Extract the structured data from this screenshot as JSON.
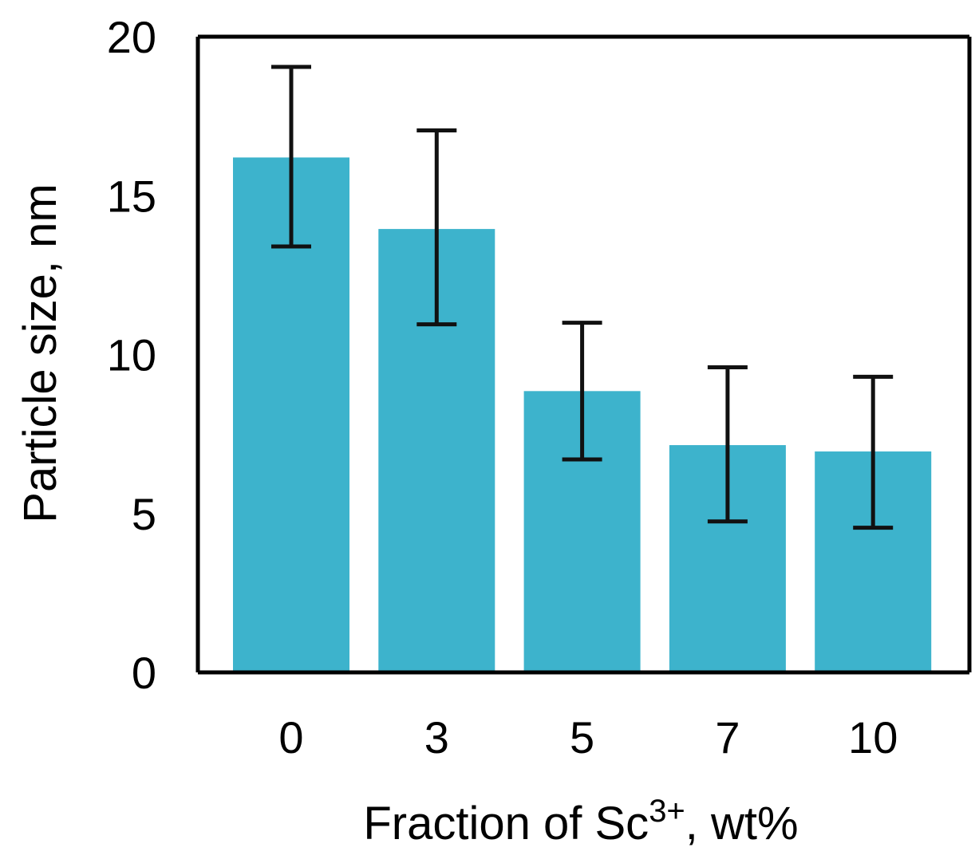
{
  "chart_data": {
    "type": "bar",
    "title": "",
    "xlabel": "Fraction of Sc3+, wt%",
    "xlabel_parts": {
      "base": "Fraction of Sc",
      "superscript": "3+",
      "suffix": ", wt%"
    },
    "ylabel": "Particle size, nm",
    "categories": [
      "0",
      "3",
      "5",
      "7",
      "10"
    ],
    "values": [
      16.2,
      13.95,
      8.85,
      7.15,
      6.95
    ],
    "error_low": [
      13.4,
      10.95,
      6.7,
      4.75,
      4.55
    ],
    "error_high": [
      19.05,
      17.05,
      11.0,
      9.6,
      9.3
    ],
    "ylim": [
      0,
      20
    ],
    "yticks": [
      0,
      5,
      10,
      15,
      20
    ],
    "ytick_labels": [
      "0",
      "5",
      "10",
      "15",
      "20"
    ],
    "bar_color": "#3db3cc",
    "error_color": "#111111",
    "grid": false,
    "legend": "none"
  }
}
